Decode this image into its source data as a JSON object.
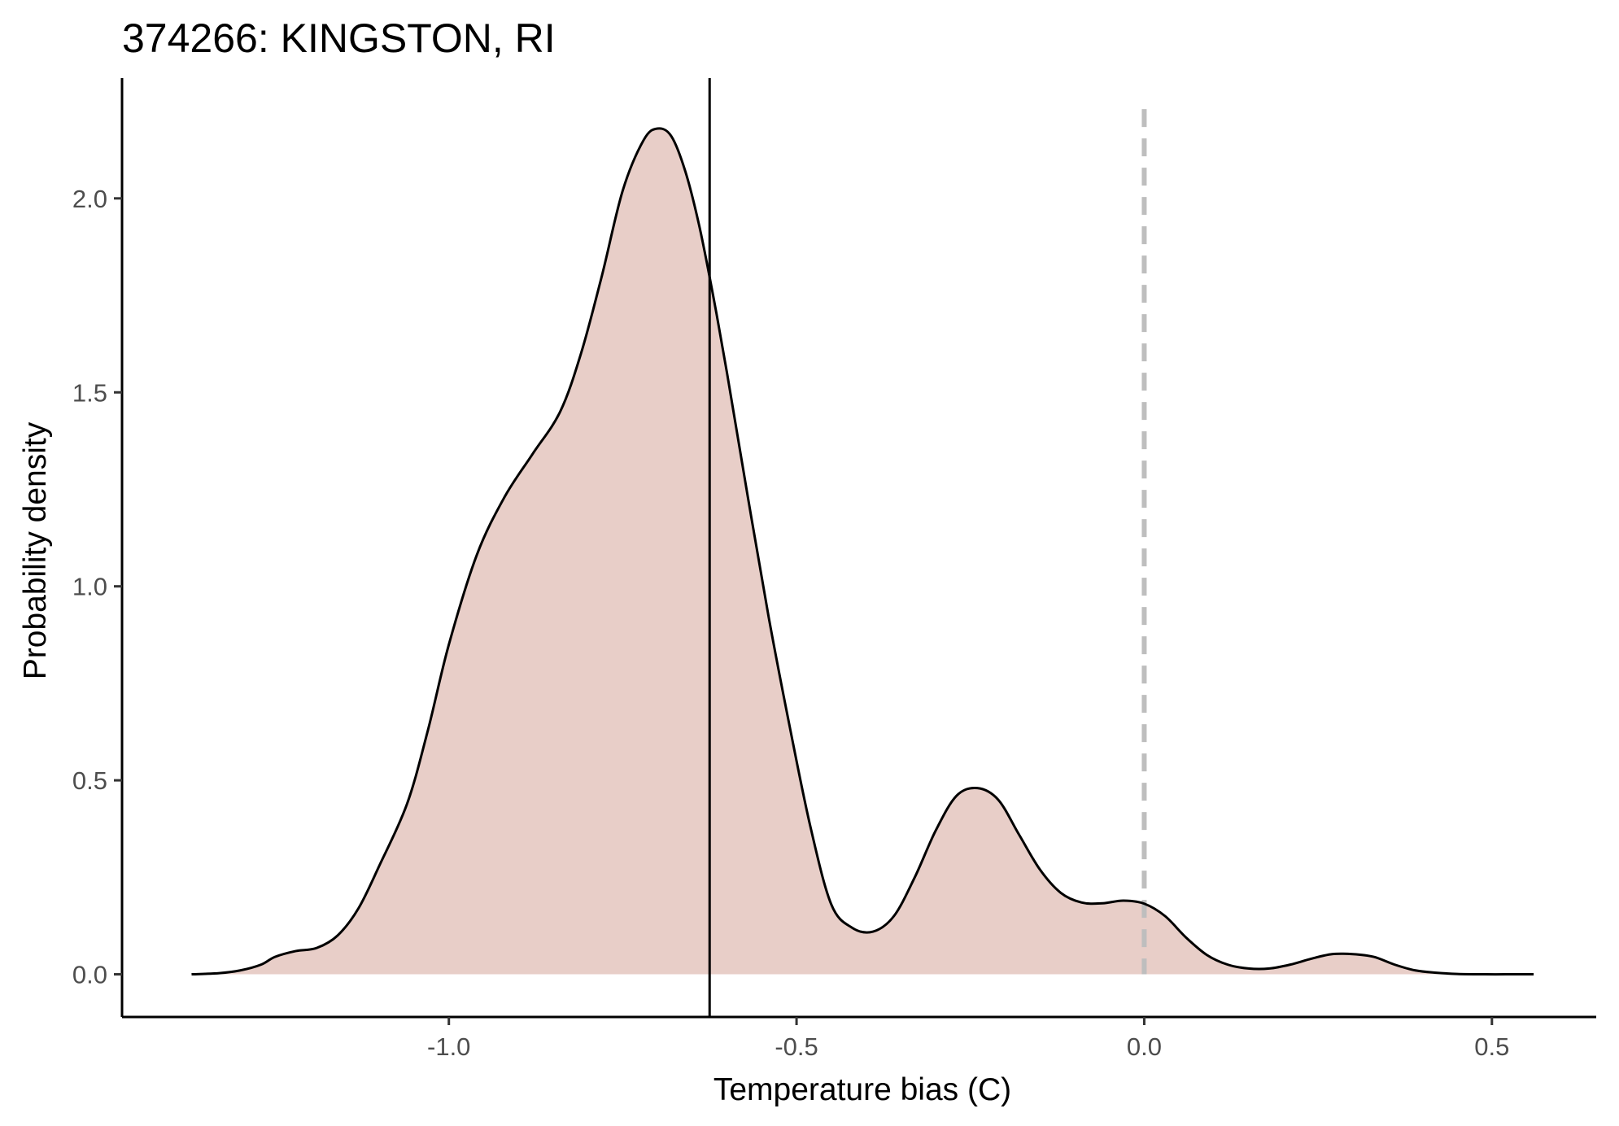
{
  "chart_data": {
    "type": "area",
    "title": "374266: KINGSTON, RI",
    "xlabel": "Temperature bias (C)",
    "ylabel": "Probability density",
    "xlim": [
      -1.47,
      0.65
    ],
    "ylim": [
      -0.11,
      2.31
    ],
    "x_ticks": [
      -1.0,
      -0.5,
      0.0,
      0.5
    ],
    "x_tick_labels": [
      "-1.0",
      "-0.5",
      "0.0",
      "0.5"
    ],
    "y_ticks": [
      0.0,
      0.5,
      1.0,
      1.5,
      2.0
    ],
    "y_tick_labels": [
      "0.0",
      "0.5",
      "1.0",
      "1.5",
      "2.0"
    ],
    "grid": false,
    "legend": "none",
    "colors": {
      "fill": "#e8cec8",
      "line": "#000000",
      "reference_line": "#bebebe",
      "axis": "#000000"
    },
    "series": [
      {
        "values_x": [
          -1.37,
          -1.33,
          -1.3,
          -1.27,
          -1.25,
          -1.22,
          -1.19,
          -1.16,
          -1.13,
          -1.1,
          -1.06,
          -1.03,
          -1.0,
          -0.96,
          -0.92,
          -0.88,
          -0.84,
          -0.81,
          -0.78,
          -0.75,
          -0.72,
          -0.7,
          -0.68,
          -0.66,
          -0.64,
          -0.62,
          -0.6,
          -0.57,
          -0.54,
          -0.51,
          -0.48,
          -0.45,
          -0.42,
          -0.39,
          -0.36,
          -0.33,
          -0.3,
          -0.27,
          -0.24,
          -0.21,
          -0.18,
          -0.15,
          -0.12,
          -0.09,
          -0.06,
          -0.03,
          0.0,
          0.03,
          0.06,
          0.09,
          0.12,
          0.15,
          0.18,
          0.21,
          0.24,
          0.27,
          0.3,
          0.33,
          0.36,
          0.39,
          0.42,
          0.45,
          0.49,
          0.52,
          0.56
        ],
        "values_y": [
          0.0,
          0.003,
          0.01,
          0.025,
          0.045,
          0.06,
          0.068,
          0.1,
          0.17,
          0.28,
          0.44,
          0.63,
          0.85,
          1.08,
          1.23,
          1.34,
          1.45,
          1.6,
          1.8,
          2.02,
          2.15,
          2.18,
          2.16,
          2.07,
          1.93,
          1.75,
          1.55,
          1.23,
          0.92,
          0.64,
          0.38,
          0.18,
          0.12,
          0.11,
          0.15,
          0.25,
          0.37,
          0.46,
          0.48,
          0.45,
          0.36,
          0.27,
          0.21,
          0.185,
          0.183,
          0.19,
          0.182,
          0.15,
          0.095,
          0.05,
          0.025,
          0.015,
          0.015,
          0.025,
          0.04,
          0.052,
          0.052,
          0.045,
          0.025,
          0.01,
          0.004,
          0.001,
          0.0,
          0.0,
          0.0
        ]
      }
    ],
    "reference_lines": [
      {
        "type": "vertical",
        "x": -0.625,
        "style": "solid"
      },
      {
        "type": "vertical",
        "x": 0.0,
        "style": "dashed"
      }
    ]
  }
}
